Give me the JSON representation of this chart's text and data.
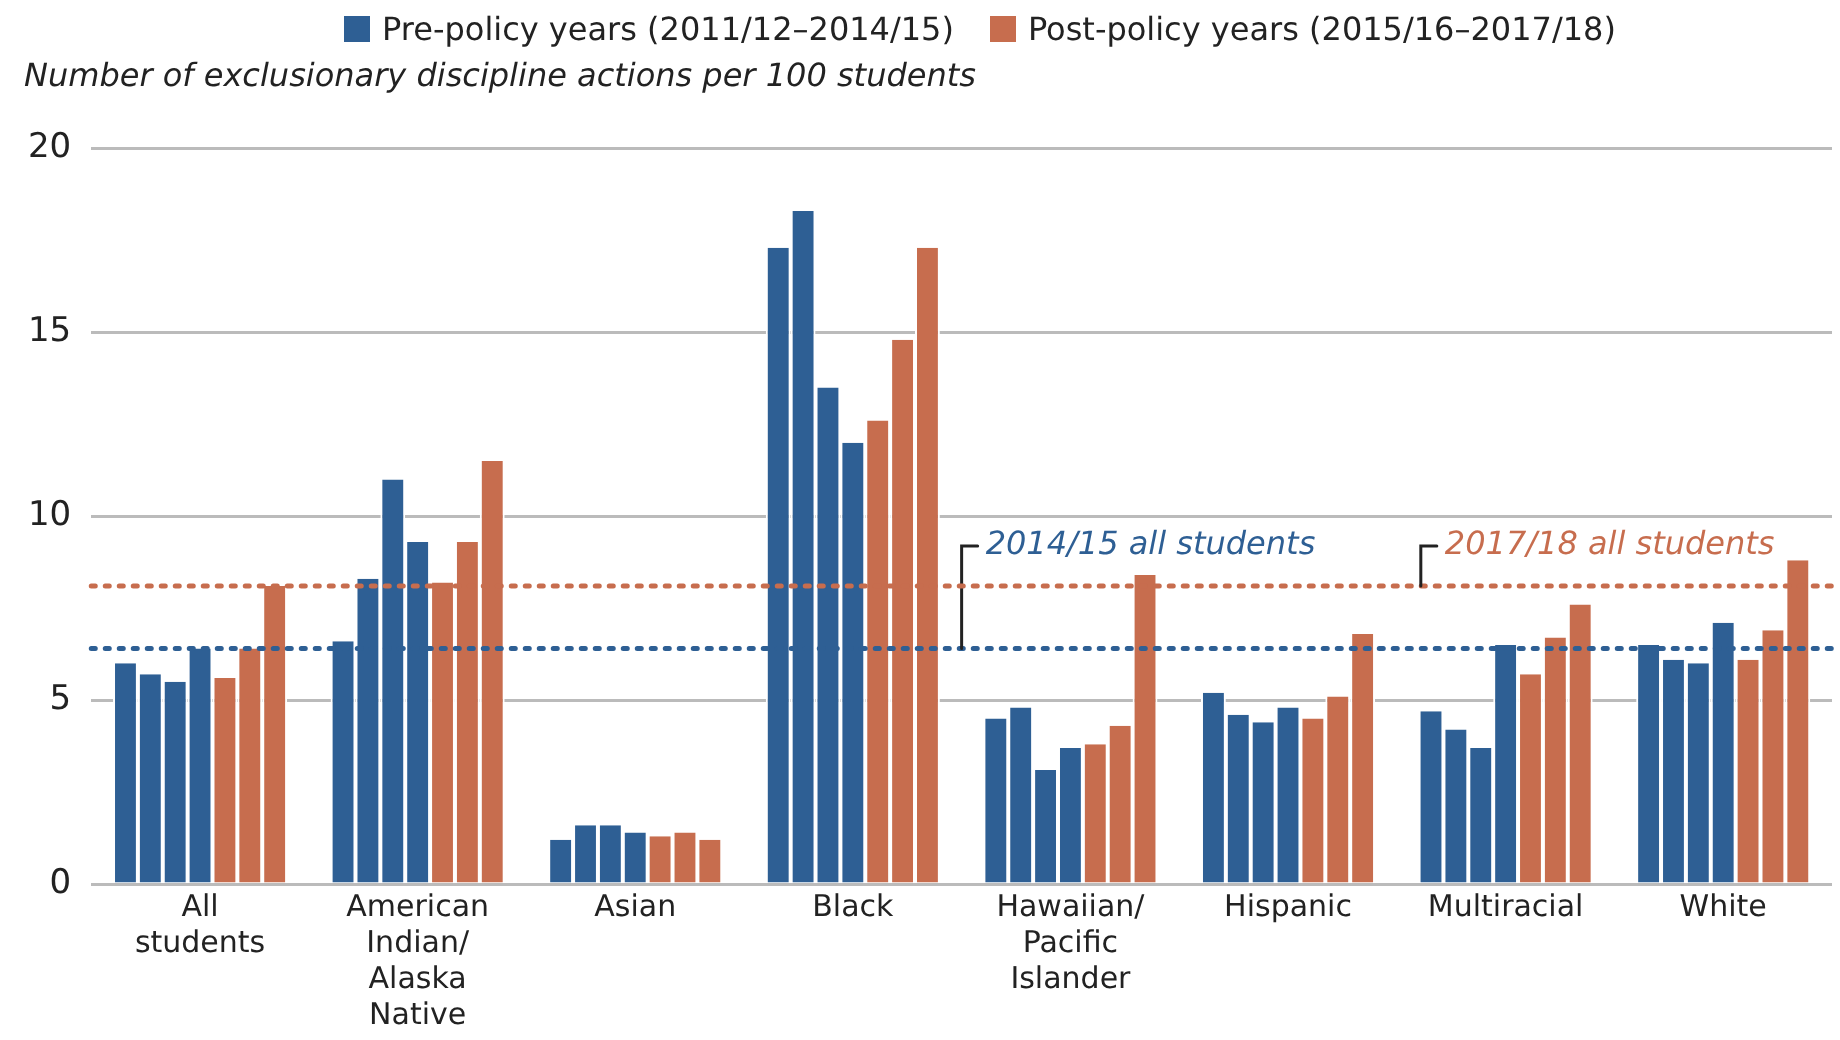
{
  "chart_data": {
    "type": "bar",
    "ylabel": "Number of exclusionary discipline actions per 100 students",
    "categories": [
      "All students",
      "American Indian/ Alaska Native",
      "Asian",
      "Black",
      "Hawaiian/ Pacific Islander",
      "Hispanic",
      "Multiracial",
      "White"
    ],
    "series": [
      {
        "name": "Pre-policy years (2011/12–2014/15)",
        "color": "#2e5f94",
        "values": [
          6.0,
          6.6,
          1.2,
          17.3,
          4.5,
          5.2,
          4.7,
          6.5
        ]
      },
      {
        "color": "#2e5f94",
        "values": [
          5.7,
          8.3,
          1.6,
          18.3,
          4.8,
          4.6,
          4.2,
          6.1
        ]
      },
      {
        "color": "#2e5f94",
        "values": [
          5.5,
          11.0,
          1.6,
          13.5,
          3.1,
          4.4,
          3.7,
          6.0
        ]
      },
      {
        "color": "#2e5f94",
        "values": [
          6.4,
          9.3,
          1.4,
          12.0,
          3.7,
          4.8,
          6.5,
          7.1
        ]
      },
      {
        "name": "Post-policy years (2015/16–2017/18)",
        "color": "#c76d4e",
        "values": [
          5.6,
          8.2,
          1.3,
          12.6,
          3.8,
          4.5,
          5.7,
          6.1
        ]
      },
      {
        "color": "#c76d4e",
        "values": [
          6.4,
          9.3,
          1.4,
          14.8,
          4.3,
          5.1,
          6.7,
          6.9
        ]
      },
      {
        "color": "#c76d4e",
        "values": [
          8.1,
          11.5,
          1.2,
          17.3,
          8.4,
          6.8,
          7.6,
          8.8
        ]
      }
    ],
    "ylim": [
      0,
      20
    ],
    "yticks": [
      0,
      5,
      10,
      15,
      20
    ],
    "grid": "y",
    "legend": "top",
    "ref_lines": [
      {
        "axis": "y",
        "value": 6.4,
        "label": "2014/15 all students",
        "color": "#2e5f94",
        "line_style": "dotted"
      },
      {
        "axis": "y",
        "value": 8.1,
        "label": "2017/18 all students",
        "color": "#c76d4e",
        "line_style": "dotted"
      }
    ]
  }
}
